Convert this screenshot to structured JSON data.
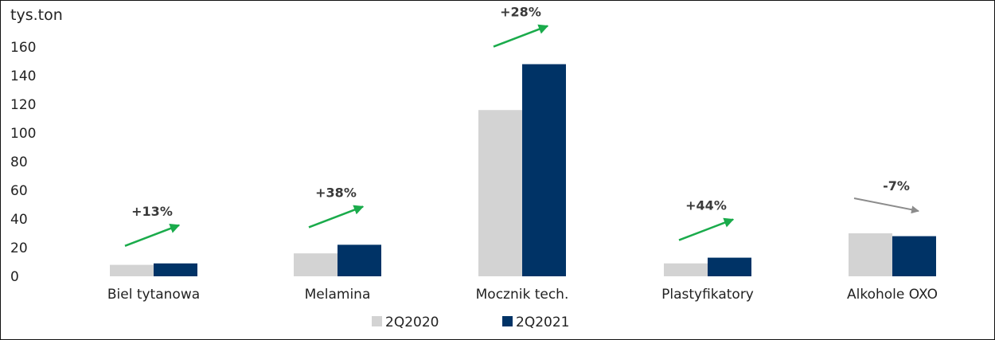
{
  "chart_data": {
    "type": "bar",
    "ylabel": "tys.ton",
    "ylim": [
      0,
      160
    ],
    "yticks": [
      0,
      20,
      40,
      60,
      80,
      100,
      120,
      140,
      160
    ],
    "grid": false,
    "legend_position": "bottom-center",
    "categories": [
      "Biel tytanowa",
      "Melamina",
      "Mocznik tech.",
      "Plastyfikatory",
      "Alkohole OXO"
    ],
    "series": [
      {
        "name": "2Q2020",
        "color": "#d3d3d3",
        "values": [
          8,
          16,
          116,
          9,
          30
        ]
      },
      {
        "name": "2Q2021",
        "color": "#003366",
        "values": [
          9,
          22,
          148,
          13,
          28
        ]
      }
    ],
    "annotations": [
      {
        "label": "+13%",
        "direction": "up",
        "color": "#1aab4b"
      },
      {
        "label": "+38%",
        "direction": "up",
        "color": "#1aab4b"
      },
      {
        "label": "+28%",
        "direction": "up",
        "color": "#1aab4b"
      },
      {
        "label": "+44%",
        "direction": "up",
        "color": "#1aab4b"
      },
      {
        "label": "-7%",
        "direction": "down",
        "color": "#8c8c8c"
      }
    ]
  }
}
